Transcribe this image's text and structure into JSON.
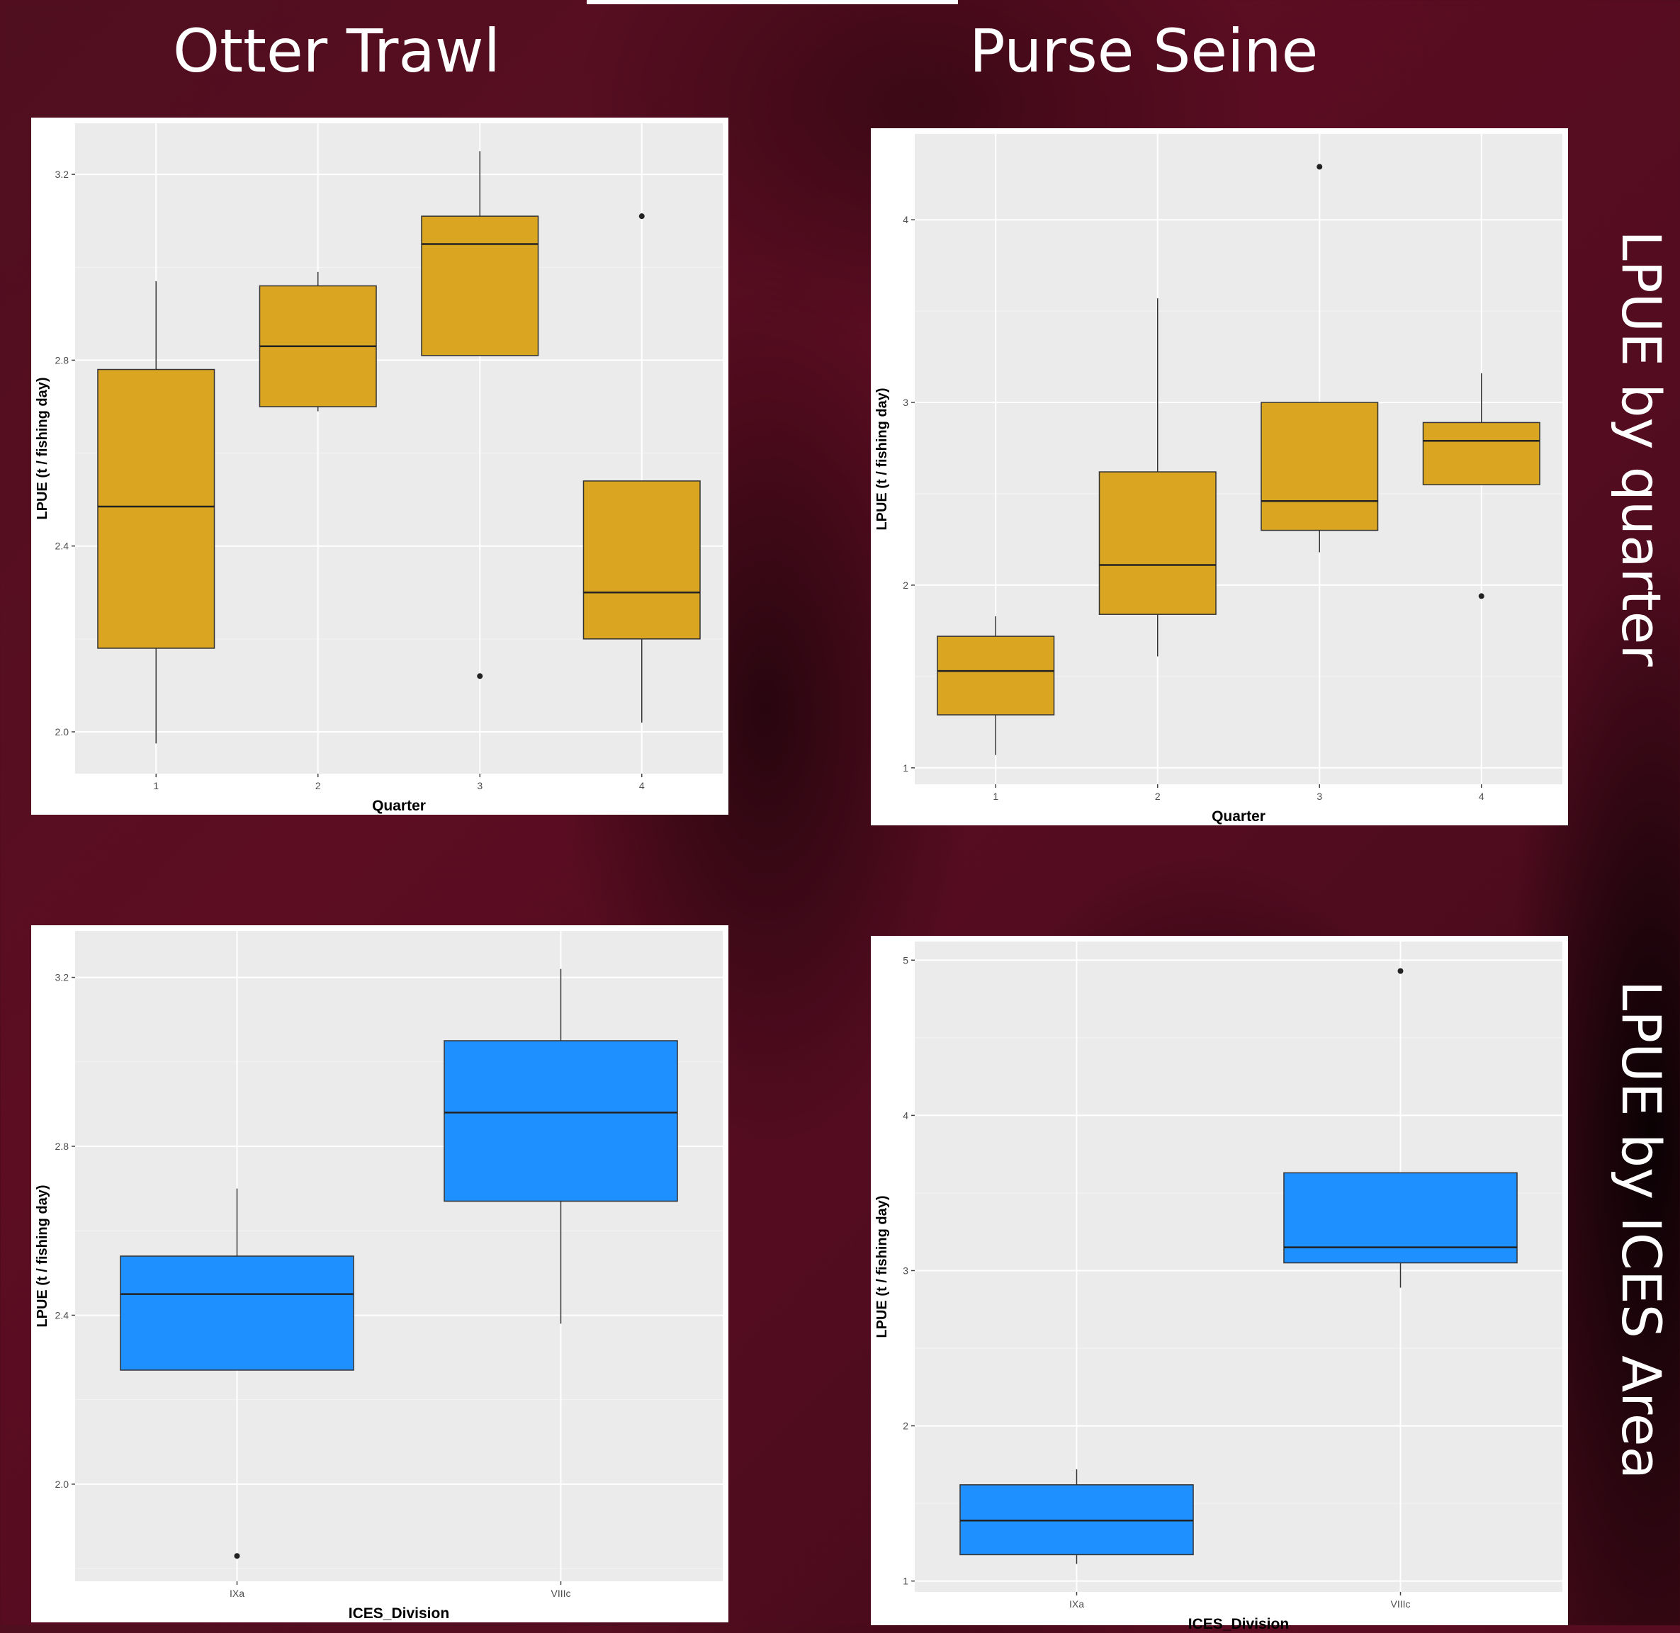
{
  "titles": {
    "col_left": "Otter Trawl",
    "col_right": "Purse Seine",
    "row_top": "LPUE by quarter",
    "row_bottom": "LPUE by ICES Area"
  },
  "colors": {
    "quarter_box": "#DAA520",
    "division_box": "#1E90FF",
    "panel_bg": "#EBEBEB",
    "grid": "#FFFFFF",
    "background": "#5C0D22"
  },
  "chart_data": [
    {
      "id": "otter-quarter",
      "type": "box",
      "title": "",
      "xlabel": "Quarter",
      "ylabel": "LPUE (t / fishing day)",
      "ylim": [
        1.91,
        3.31
      ],
      "yticks": [
        2.0,
        2.4,
        2.8,
        3.2
      ],
      "ytick_labels": [
        "2.0",
        "2.4",
        "2.8",
        "3.2"
      ],
      "color_key": "quarter_box",
      "categories": [
        "1",
        "2",
        "3",
        "4"
      ],
      "boxes": [
        {
          "category": "1",
          "whisker_low": 1.975,
          "q1": 2.18,
          "median": 2.485,
          "q3": 2.78,
          "whisker_high": 2.97,
          "outliers": []
        },
        {
          "category": "2",
          "whisker_low": 2.69,
          "q1": 2.7,
          "median": 2.83,
          "q3": 2.96,
          "whisker_high": 2.99,
          "outliers": []
        },
        {
          "category": "3",
          "whisker_low": 2.81,
          "q1": 2.81,
          "median": 3.05,
          "q3": 3.11,
          "whisker_high": 3.25,
          "outliers": [
            2.12
          ]
        },
        {
          "category": "4",
          "whisker_low": 2.02,
          "q1": 2.2,
          "median": 2.3,
          "q3": 2.54,
          "whisker_high": 2.54,
          "outliers": [
            3.11
          ]
        }
      ]
    },
    {
      "id": "purse-quarter",
      "type": "box",
      "title": "",
      "xlabel": "Quarter",
      "ylabel": "LPUE (t / fishing day)",
      "ylim": [
        0.91,
        4.47
      ],
      "yticks": [
        1,
        2,
        3,
        4
      ],
      "ytick_labels": [
        "1",
        "2",
        "3",
        "4"
      ],
      "color_key": "quarter_box",
      "categories": [
        "1",
        "2",
        "3",
        "4"
      ],
      "boxes": [
        {
          "category": "1",
          "whisker_low": 1.07,
          "q1": 1.29,
          "median": 1.53,
          "q3": 1.72,
          "whisker_high": 1.83,
          "outliers": []
        },
        {
          "category": "2",
          "whisker_low": 1.61,
          "q1": 1.84,
          "median": 2.11,
          "q3": 2.62,
          "whisker_high": 3.57,
          "outliers": []
        },
        {
          "category": "3",
          "whisker_low": 2.18,
          "q1": 2.3,
          "median": 2.46,
          "q3": 3.0,
          "whisker_high": 3.0,
          "outliers": [
            4.29
          ]
        },
        {
          "category": "4",
          "whisker_low": 2.55,
          "q1": 2.55,
          "median": 2.79,
          "q3": 2.89,
          "whisker_high": 3.16,
          "outliers": [
            1.94
          ]
        }
      ]
    },
    {
      "id": "otter-division",
      "type": "box",
      "title": "",
      "xlabel": "ICES_Division",
      "ylabel": "LPUE (t / fishing day)",
      "ylim": [
        1.77,
        3.31
      ],
      "yticks": [
        2.0,
        2.4,
        2.8,
        3.2
      ],
      "ytick_labels": [
        "2.0",
        "2.4",
        "2.8",
        "3.2"
      ],
      "color_key": "division_box",
      "categories": [
        "IXa",
        "VIIIc"
      ],
      "boxes": [
        {
          "category": "IXa",
          "whisker_low": 2.27,
          "q1": 2.27,
          "median": 2.45,
          "q3": 2.54,
          "whisker_high": 2.7,
          "outliers": [
            1.83
          ]
        },
        {
          "category": "VIIIc",
          "whisker_low": 2.38,
          "q1": 2.67,
          "median": 2.88,
          "q3": 3.05,
          "whisker_high": 3.22,
          "outliers": []
        }
      ]
    },
    {
      "id": "purse-division",
      "type": "box",
      "title": "",
      "xlabel": "ICES_Division",
      "ylabel": "LPUE (t / fishing day)",
      "ylim": [
        0.93,
        5.12
      ],
      "yticks": [
        1,
        2,
        3,
        4,
        5
      ],
      "ytick_labels": [
        "1",
        "2",
        "3",
        "4",
        "5"
      ],
      "color_key": "division_box",
      "categories": [
        "IXa",
        "VIIIc"
      ],
      "boxes": [
        {
          "category": "IXa",
          "whisker_low": 1.11,
          "q1": 1.17,
          "median": 1.39,
          "q3": 1.62,
          "whisker_high": 1.72,
          "outliers": []
        },
        {
          "category": "VIIIc",
          "whisker_low": 2.89,
          "q1": 3.05,
          "median": 3.15,
          "q3": 3.63,
          "whisker_high": 3.63,
          "outliers": [
            4.93
          ]
        }
      ]
    }
  ]
}
